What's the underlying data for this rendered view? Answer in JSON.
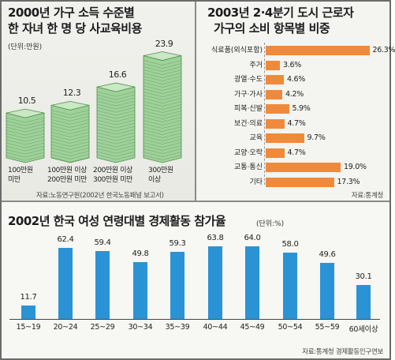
{
  "chart_data": [
    {
      "type": "bar",
      "title": [
        "2000년 가구 소득 수준별",
        "한 자녀 한 명 당 사교육비용"
      ],
      "unit": "(단위:만원)",
      "categories": [
        [
          "100만원",
          "미만"
        ],
        [
          "100만원 이상",
          "200만원 미만"
        ],
        [
          "200만원 이상",
          "300만원 미만"
        ],
        [
          "300만원",
          "이상"
        ]
      ],
      "values": [
        10.5,
        12.3,
        16.6,
        23.9
      ],
      "value_labels": [
        "10.5",
        "12.3",
        "16.6",
        "23.9"
      ],
      "source": "자료:노동연구원(2002년 한국노동패널 보고서)",
      "colors": {
        "stack": "#9fd19a",
        "stack_edge": "#4f8f4a",
        "stack_top": "#c9e8c4"
      }
    },
    {
      "type": "bar",
      "orientation": "horizontal",
      "title": [
        "2003년 2·4분기 도시 근로자",
        "가구의 소비 항목별 비중"
      ],
      "categories": [
        "식료품(외식포함)",
        "주거",
        "광열·수도",
        "가구·가사",
        "피복·신발",
        "보건·의료",
        "교육",
        "교양·오락",
        "교통·통신",
        "기타"
      ],
      "values": [
        26.3,
        3.6,
        4.6,
        4.2,
        5.9,
        4.7,
        9.7,
        4.7,
        19.0,
        17.3
      ],
      "value_labels": [
        "26.3%",
        "3.6%",
        "4.6%",
        "4.2%",
        "5.9%",
        "4.7%",
        "9.7%",
        "4.7%",
        "19.0%",
        "17.3%"
      ],
      "source": "자료:통계청",
      "colors": {
        "bar": "#ef8a3c"
      }
    },
    {
      "type": "bar",
      "title": "2002년 한국 여성 연령대별 경제활동 참가율",
      "unit": "(단위:%)",
      "categories": [
        "15~19",
        "20~24",
        "25~29",
        "30~34",
        "35~39",
        "40~44",
        "45~49",
        "50~54",
        "55~59",
        "60세이상"
      ],
      "values": [
        11.7,
        62.4,
        59.4,
        49.8,
        59.3,
        63.8,
        64.0,
        58.0,
        49.6,
        30.1
      ],
      "value_labels": [
        "11.7",
        "62.4",
        "59.4",
        "49.8",
        "59.3",
        "63.8",
        "64.0",
        "58.0",
        "49.6",
        "30.1"
      ],
      "source": "자료:통계청 경제활동인구연보",
      "colors": {
        "bar": "#2a93d5"
      }
    }
  ]
}
